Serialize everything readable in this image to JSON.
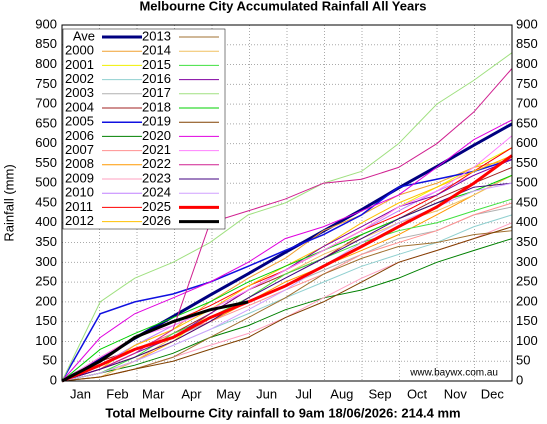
{
  "chart_data": {
    "type": "line",
    "title": "Melbourne City Accumulated Rainfall All Years",
    "footer": "Total Melbourne City rainfall to 9am 18/06/2026: 214.4 mm",
    "y_label": "Rainfall (mm)",
    "watermark": "www.baywx.com.au",
    "x": [
      0,
      31,
      59,
      90,
      120,
      151,
      181,
      212,
      243,
      273,
      304,
      334,
      365
    ],
    "xlim": [
      0,
      365
    ],
    "xticks": [
      {
        "value": 15,
        "label": "Jan"
      },
      {
        "value": 45,
        "label": "Feb"
      },
      {
        "value": 74,
        "label": "Mar"
      },
      {
        "value": 105,
        "label": "Apr"
      },
      {
        "value": 135,
        "label": "May"
      },
      {
        "value": 166,
        "label": "Jun"
      },
      {
        "value": 196,
        "label": "Jul"
      },
      {
        "value": 227,
        "label": "Aug"
      },
      {
        "value": 258,
        "label": "Sep"
      },
      {
        "value": 288,
        "label": "Oct"
      },
      {
        "value": 319,
        "label": "Nov"
      },
      {
        "value": 349,
        "label": "Dec"
      }
    ],
    "ylim": [
      0,
      900
    ],
    "yticks": [
      0,
      50,
      100,
      150,
      200,
      250,
      300,
      350,
      400,
      450,
      500,
      550,
      600,
      650,
      700,
      750,
      800,
      850,
      900
    ],
    "grid": true,
    "series": [
      {
        "name": "Ave",
        "color": "#000080",
        "width": 3,
        "values": [
          0,
          54,
          108,
          163,
          217,
          271,
          325,
          379,
          433,
          488,
          542,
          596,
          650
        ]
      },
      {
        "name": "2000",
        "color": "#f0a030",
        "width": 1,
        "values": [
          0,
          40,
          90,
          130,
          200,
          260,
          310,
          380,
          420,
          470,
          500,
          540,
          560
        ]
      },
      {
        "name": "2001",
        "color": "#f0f000",
        "width": 1,
        "values": [
          0,
          30,
          60,
          100,
          170,
          230,
          280,
          330,
          380,
          440,
          490,
          540,
          590
        ]
      },
      {
        "name": "2002",
        "color": "#90d0d0",
        "width": 1,
        "values": [
          0,
          20,
          50,
          90,
          130,
          170,
          210,
          250,
          290,
          320,
          350,
          390,
          420
        ]
      },
      {
        "name": "2003",
        "color": "#b0b0b0",
        "width": 1,
        "values": [
          0,
          30,
          70,
          110,
          150,
          200,
          240,
          280,
          320,
          360,
          380,
          420,
          440
        ]
      },
      {
        "name": "2004",
        "color": "#a02020",
        "width": 1,
        "values": [
          0,
          50,
          80,
          120,
          170,
          230,
          270,
          310,
          370,
          410,
          460,
          500,
          540
        ]
      },
      {
        "name": "2005",
        "color": "#1010e0",
        "width": 1.5,
        "values": [
          0,
          170,
          200,
          220,
          250,
          290,
          330,
          370,
          420,
          490,
          510,
          530,
          560
        ]
      },
      {
        "name": "2006",
        "color": "#008000",
        "width": 1,
        "values": [
          0,
          20,
          40,
          70,
          110,
          140,
          180,
          210,
          230,
          260,
          300,
          330,
          360
        ]
      },
      {
        "name": "2007",
        "color": "#ff9090",
        "width": 1,
        "values": [
          0,
          40,
          80,
          120,
          150,
          190,
          230,
          270,
          320,
          350,
          380,
          420,
          450
        ]
      },
      {
        "name": "2008",
        "color": "#ff9900",
        "width": 1,
        "values": [
          0,
          20,
          50,
          100,
          150,
          200,
          250,
          290,
          330,
          370,
          420,
          470,
          520
        ]
      },
      {
        "name": "2009",
        "color": "#ffa0c0",
        "width": 1,
        "values": [
          0,
          10,
          30,
          60,
          90,
          120,
          160,
          210,
          260,
          300,
          330,
          360,
          400
        ]
      },
      {
        "name": "2010",
        "color": "#c080ff",
        "width": 1,
        "values": [
          0,
          40,
          90,
          140,
          180,
          230,
          280,
          330,
          380,
          430,
          480,
          520,
          560
        ]
      },
      {
        "name": "2011",
        "color": "#ff0000",
        "width": 1,
        "values": [
          0,
          60,
          110,
          150,
          190,
          240,
          280,
          330,
          380,
          420,
          470,
          530,
          590
        ]
      },
      {
        "name": "2012",
        "color": "#ffc000",
        "width": 1,
        "values": [
          0,
          30,
          90,
          130,
          180,
          240,
          290,
          340,
          400,
          450,
          490,
          530,
          570
        ]
      },
      {
        "name": "2013",
        "color": "#a07030",
        "width": 1,
        "values": [
          0,
          10,
          30,
          60,
          110,
          160,
          210,
          270,
          310,
          340,
          350,
          370,
          380
        ]
      },
      {
        "name": "2014",
        "color": "#f0c060",
        "width": 1,
        "values": [
          0,
          10,
          50,
          110,
          160,
          210,
          270,
          320,
          360,
          400,
          430,
          470,
          520
        ]
      },
      {
        "name": "2015",
        "color": "#40e040",
        "width": 1,
        "values": [
          0,
          20,
          60,
          120,
          160,
          210,
          270,
          310,
          350,
          380,
          400,
          430,
          460
        ]
      },
      {
        "name": "2016",
        "color": "#8000a0",
        "width": 1,
        "values": [
          0,
          30,
          70,
          110,
          170,
          230,
          280,
          340,
          390,
          440,
          470,
          520,
          560
        ]
      },
      {
        "name": "2017",
        "color": "#a0e080",
        "width": 1,
        "values": [
          0,
          200,
          260,
          300,
          350,
          420,
          450,
          500,
          530,
          600,
          700,
          760,
          830
        ]
      },
      {
        "name": "2018",
        "color": "#00d000",
        "width": 1,
        "values": [
          0,
          80,
          120,
          160,
          200,
          250,
          290,
          330,
          370,
          410,
          450,
          480,
          520
        ]
      },
      {
        "name": "2019",
        "color": "#804000",
        "width": 1,
        "values": [
          0,
          10,
          30,
          50,
          80,
          110,
          160,
          200,
          250,
          300,
          330,
          360,
          390
        ]
      },
      {
        "name": "2020",
        "color": "#e000e0",
        "width": 1,
        "values": [
          0,
          110,
          170,
          210,
          250,
          300,
          360,
          390,
          430,
          470,
          540,
          610,
          660
        ]
      },
      {
        "name": "2021",
        "color": "#ff80ff",
        "width": 1,
        "values": [
          0,
          60,
          110,
          140,
          180,
          230,
          280,
          330,
          380,
          440,
          480,
          540,
          620
        ]
      },
      {
        "name": "2022",
        "color": "#d02090",
        "width": 1,
        "values": [
          0,
          30,
          70,
          130,
          400,
          430,
          460,
          500,
          510,
          540,
          600,
          680,
          790
        ]
      },
      {
        "name": "2023",
        "color": "#400080",
        "width": 1,
        "values": [
          0,
          30,
          60,
          100,
          150,
          210,
          260,
          310,
          360,
          410,
          450,
          490,
          500
        ]
      },
      {
        "name": "2024",
        "color": "#d0a0ff",
        "width": 1,
        "values": [
          0,
          20,
          50,
          90,
          130,
          180,
          230,
          290,
          350,
          400,
          440,
          480,
          500
        ]
      },
      {
        "name": "2025",
        "color": "#ff0000",
        "width": 3,
        "values": [
          0,
          40,
          80,
          110,
          160,
          200,
          240,
          290,
          340,
          390,
          440,
          500,
          570
        ]
      },
      {
        "name": "2026",
        "color": "#000000",
        "width": 3,
        "values": [
          0,
          50,
          110,
          150,
          180,
          200,
          null,
          null,
          null,
          null,
          null,
          null,
          null
        ]
      }
    ]
  }
}
